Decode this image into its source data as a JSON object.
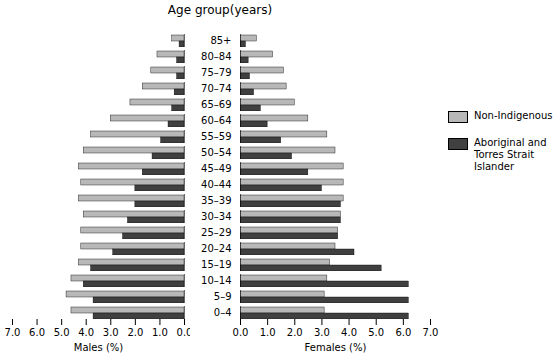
{
  "chart_data": [
    {
      "type": "bar",
      "orientation": "horizontal",
      "title": "Age group(years)",
      "xlabel": "Males (%)",
      "categories": [
        "0–4",
        "5–9",
        "10–14",
        "15–19",
        "20–24",
        "25–29",
        "30–34",
        "35–39",
        "40–44",
        "45–49",
        "50–54",
        "55–59",
        "60–64",
        "65–69",
        "70–74",
        "75–79",
        "80–84",
        "85+"
      ],
      "series": [
        {
          "name": "Non-Indigenous",
          "color": "#b8b8b8",
          "values": [
            4.6,
            4.8,
            4.6,
            4.3,
            4.2,
            4.2,
            4.1,
            4.3,
            4.2,
            4.3,
            4.1,
            3.8,
            3.0,
            2.2,
            1.7,
            1.35,
            1.1,
            0.5
          ]
        },
        {
          "name": "Aboriginal and\nTorres Strait\nIslander",
          "color": "#404040",
          "values": [
            3.7,
            3.7,
            4.1,
            3.8,
            2.9,
            2.5,
            2.3,
            2.0,
            2.0,
            1.7,
            1.3,
            0.95,
            0.65,
            0.5,
            0.4,
            0.3,
            0.3,
            0.2
          ]
        }
      ],
      "xlim": [
        7,
        0
      ],
      "xticks": [
        0,
        1,
        2,
        3,
        4,
        5,
        6,
        7
      ]
    },
    {
      "type": "bar",
      "orientation": "horizontal",
      "xlabel": "Females (%)",
      "categories": [
        "0–4",
        "5–9",
        "10–14",
        "15–19",
        "20–24",
        "25–29",
        "30–34",
        "35–39",
        "40–44",
        "45–49",
        "50–54",
        "55–59",
        "60–64",
        "65–69",
        "70–74",
        "75–79",
        "80–84",
        "85+"
      ],
      "series": [
        {
          "name": "Non-Indigenous",
          "color": "#b8b8b8",
          "values": [
            3.1,
            3.1,
            3.2,
            3.3,
            3.5,
            3.6,
            3.7,
            3.8,
            3.8,
            3.8,
            3.5,
            3.2,
            2.5,
            2.0,
            1.7,
            1.6,
            1.2,
            0.6
          ]
        },
        {
          "name": "Aboriginal and\nTorres Strait\nIslander",
          "color": "#404040",
          "values": [
            6.2,
            6.2,
            6.2,
            5.2,
            4.2,
            3.6,
            3.7,
            3.7,
            3.0,
            2.5,
            1.9,
            1.5,
            1.0,
            0.75,
            0.5,
            0.35,
            0.3,
            0.2
          ]
        }
      ],
      "xlim": [
        0,
        7
      ],
      "xticks": [
        0,
        1,
        2,
        3,
        4,
        5,
        6,
        7
      ],
      "legend": "right"
    }
  ]
}
